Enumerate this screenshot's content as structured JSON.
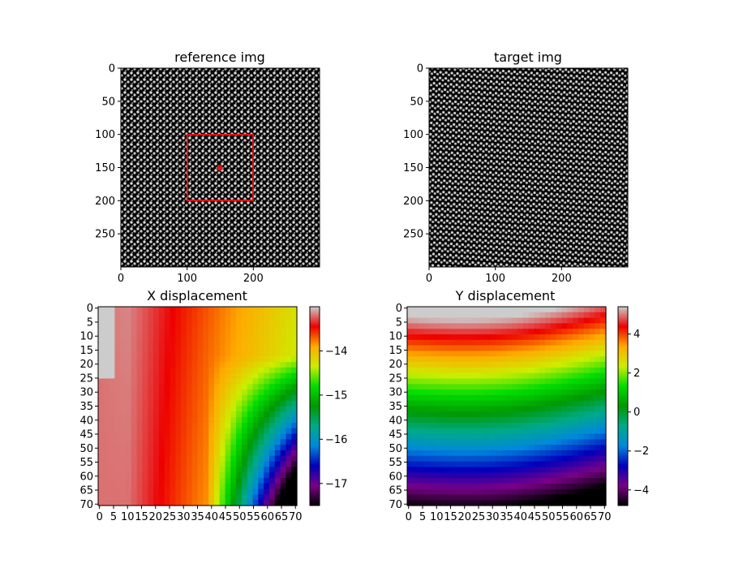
{
  "chart_data": [
    {
      "type": "image",
      "title": "reference img",
      "xticks": [
        0,
        100,
        200
      ],
      "yticks": [
        0,
        50,
        100,
        150,
        200,
        250
      ],
      "xlim": [
        0,
        300
      ],
      "ylim": [
        300,
        0
      ],
      "annotations": {
        "rectangle": {
          "x": [
            100,
            200
          ],
          "y": [
            100,
            200
          ],
          "color": "#e01010"
        },
        "point": {
          "x": 150,
          "y": 150,
          "color": "#e01010"
        }
      }
    },
    {
      "type": "image",
      "title": "target img",
      "xticks": [
        0,
        100,
        200
      ],
      "yticks": [
        0,
        50,
        100,
        150,
        200,
        250
      ],
      "xlim": [
        0,
        300
      ],
      "ylim": [
        300,
        0
      ]
    },
    {
      "type": "heatmap",
      "title": "X displacement",
      "xticks": [
        0,
        5,
        10,
        15,
        20,
        25,
        30,
        35,
        40,
        45,
        50,
        55,
        60,
        65,
        70
      ],
      "yticks": [
        0,
        5,
        10,
        15,
        20,
        25,
        30,
        35,
        40,
        45,
        50,
        55,
        60,
        65,
        70
      ],
      "grid_size": 71,
      "colormap": "nipy_spectral",
      "colorbar": {
        "min": -17.5,
        "max": -13.0,
        "ticks": [
          -17,
          -16,
          -15,
          -14
        ]
      },
      "description_values": {
        "top_left": -13.0,
        "left_band": -13.5,
        "center": -14.5,
        "bottom_right": -17.5
      }
    },
    {
      "type": "heatmap",
      "title": "Y displacement",
      "xticks": [
        0,
        5,
        10,
        15,
        20,
        25,
        30,
        35,
        40,
        45,
        50,
        55,
        60,
        65,
        70
      ],
      "yticks": [
        0,
        5,
        10,
        15,
        20,
        25,
        30,
        35,
        40,
        45,
        50,
        55,
        60,
        65,
        70
      ],
      "grid_size": 71,
      "colormap": "nipy_spectral",
      "colorbar": {
        "min": -4.8,
        "max": 5.4,
        "ticks": [
          -4,
          -2,
          0,
          2,
          4
        ]
      },
      "description_values": {
        "top": 5.4,
        "middle": 1.0,
        "bottom": -4.8
      }
    }
  ]
}
